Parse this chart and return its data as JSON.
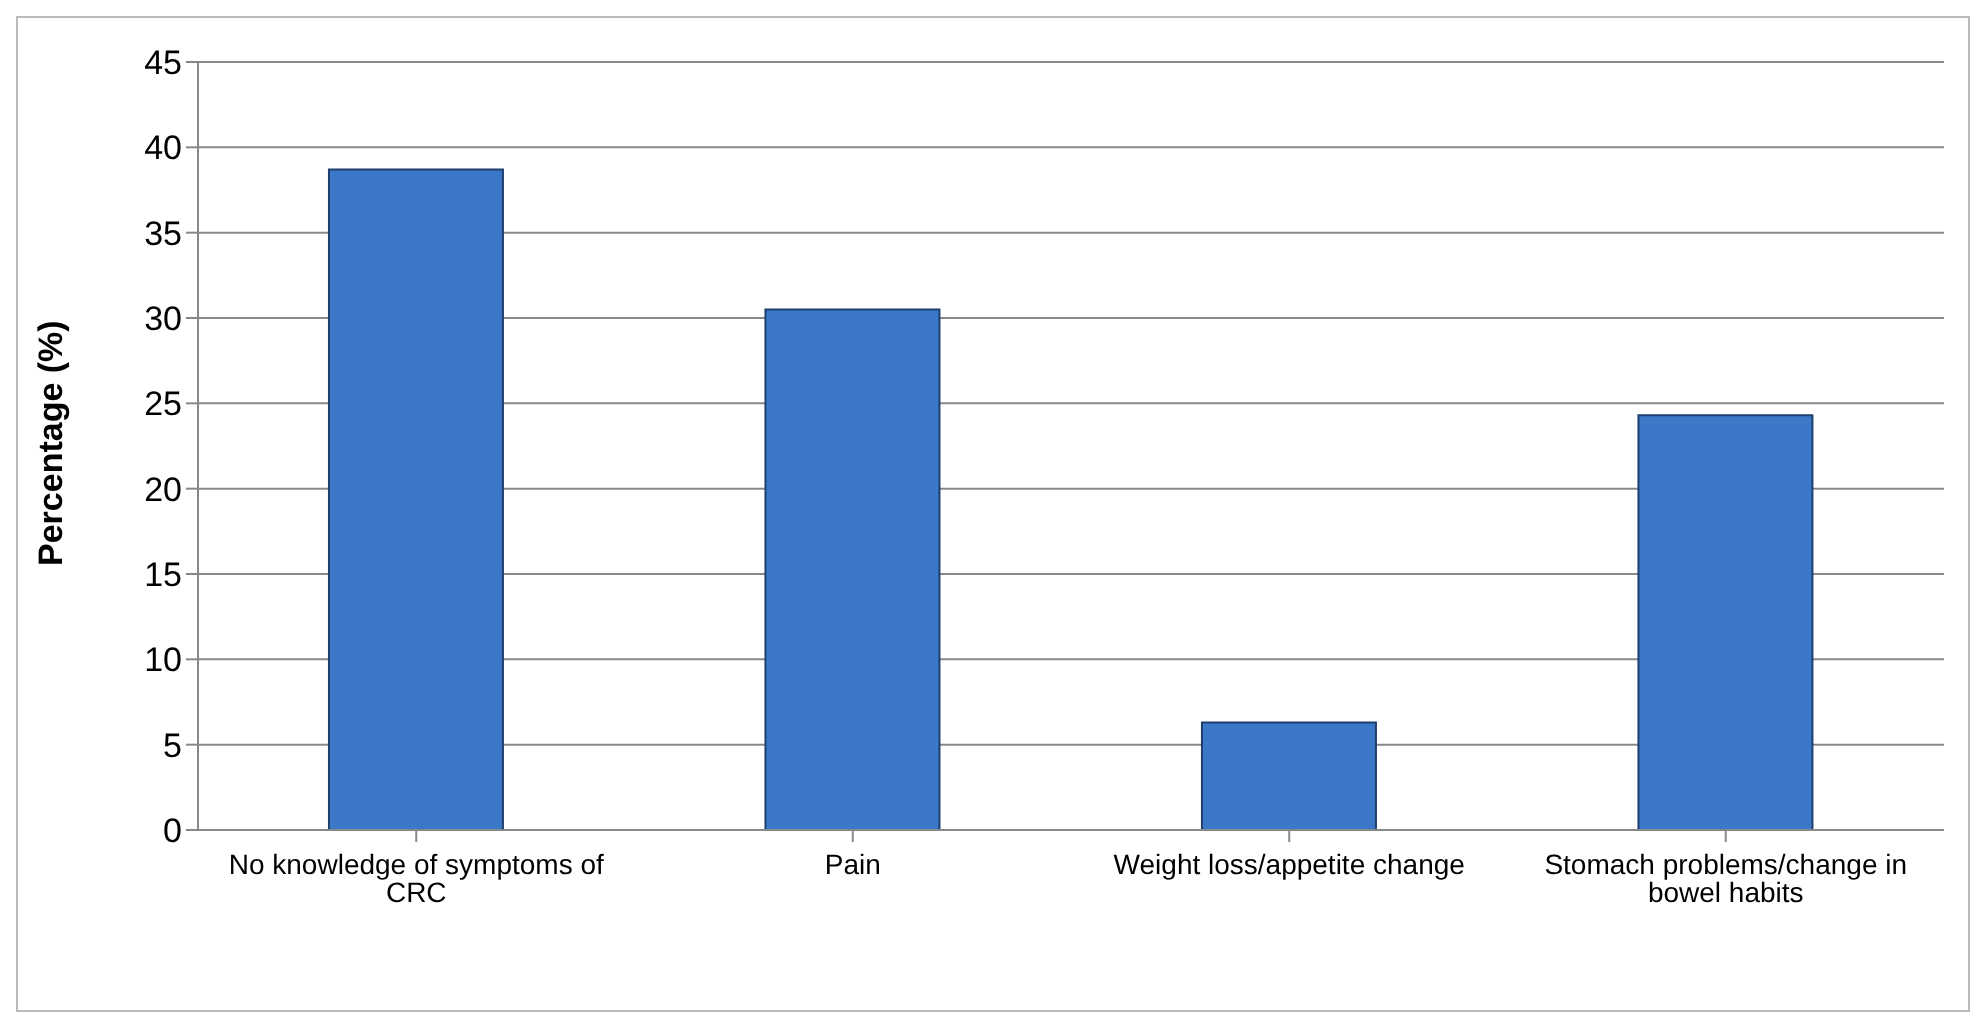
{
  "chart_data": {
    "type": "bar",
    "ylabel": "Percentage  (%)",
    "categories": [
      "No knowledge of symptoms of CRC",
      "Pain",
      "Weight loss/appetite change",
      "Stomach problems/change in bowel habits"
    ],
    "values": [
      38.7,
      30.5,
      6.3,
      24.3
    ],
    "color": "#3c78c8",
    "ylim": [
      0,
      45
    ],
    "yticks": [
      0,
      5,
      10,
      15,
      20,
      25,
      30,
      35,
      40,
      45
    ],
    "grid": "y"
  }
}
